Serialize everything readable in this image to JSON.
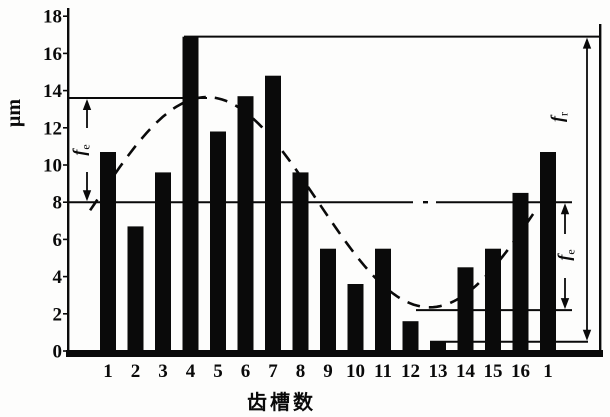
{
  "labels": {
    "unit": "μm",
    "x_title": "齿槽数",
    "fe": {
      "main": "f",
      "sub": "e"
    },
    "fr": {
      "main": "f",
      "sub": "r"
    }
  },
  "chart_data": {
    "type": "bar",
    "title": "",
    "xlabel": "齿槽数",
    "ylabel": "μm",
    "categories": [
      "1",
      "2",
      "3",
      "4",
      "5",
      "6",
      "7",
      "8",
      "9",
      "10",
      "11",
      "12",
      "13",
      "14",
      "15",
      "16",
      "1"
    ],
    "values": [
      10.7,
      6.7,
      9.6,
      16.9,
      11.8,
      13.7,
      14.8,
      9.6,
      5.5,
      3.6,
      5.5,
      1.6,
      0.5,
      4.5,
      5.5,
      8.5,
      10.7
    ],
    "bar_color": "#0a0a0a",
    "ylim": [
      0,
      18
    ],
    "yticks": [
      0,
      2,
      4,
      6,
      8,
      10,
      12,
      14,
      16,
      18
    ],
    "grid": false,
    "legend": false,
    "mean_line": 8,
    "ref_lines": {
      "sine_max": 13.6,
      "sine_min": 2.2,
      "bar_max": 16.9,
      "bar_min": 0.5
    },
    "sine_overlay": {
      "style": "dashed",
      "mean": 8,
      "amplitude": 5.65,
      "period_slots": 16.2,
      "phase_slot": 0.55,
      "slot_start": 0.35,
      "slot_end": 16.6
    },
    "annotations": [
      {
        "label": "fe",
        "side": "left",
        "from_value": 8,
        "to_value": 13.6
      },
      {
        "label": "fe",
        "side": "right",
        "from_value": 2.2,
        "to_value": 8
      },
      {
        "label": "fr",
        "side": "right-outer",
        "from_value": 0.5,
        "to_value": 16.9
      }
    ]
  }
}
